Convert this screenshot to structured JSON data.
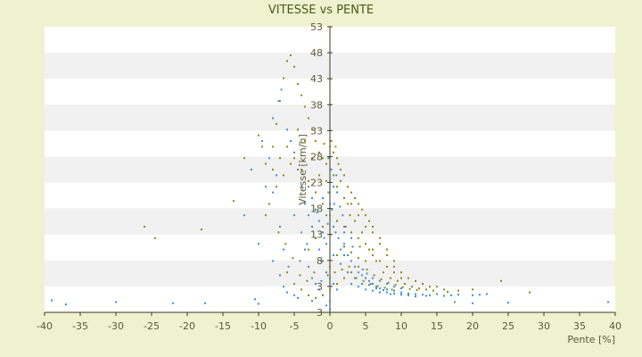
{
  "colors": {
    "background": "#eef2cf",
    "plot_band_light": "#ffffff",
    "plot_band_dark": "#f1f1f1",
    "axis": "#3a3a1a",
    "series_a": "#3a8fd9",
    "series_b": "#8a8a10"
  },
  "chart_data": {
    "type": "scatter",
    "title": "VITESSE vs PENTE",
    "xlabel": "Pente [%]",
    "ylabel": "Vitesse [km/h]",
    "xlim": [
      -40,
      40
    ],
    "ylim": [
      3,
      53
    ],
    "x_ticks": [
      -40,
      -35,
      -30,
      -25,
      -20,
      -15,
      -10,
      -5,
      0,
      5,
      10,
      15,
      20,
      25,
      30,
      35,
      40
    ],
    "y_tick_labels": [
      "3",
      "3",
      "8",
      "13",
      "18",
      "23",
      "28",
      "33",
      "38",
      "43",
      "48",
      "53"
    ],
    "grid": "horizontal bands",
    "legend": "none",
    "series": [
      {
        "color": "#3a8fd9",
        "points": [
          [
            -39,
            5.1
          ],
          [
            -37,
            4.4
          ],
          [
            -30,
            4.8
          ],
          [
            -22,
            4.6
          ],
          [
            -17.5,
            4.6
          ],
          [
            -10.5,
            5.3
          ],
          [
            -10,
            4.5
          ],
          [
            -7,
            9.5
          ],
          [
            -6.5,
            7.5
          ],
          [
            -6,
            6.5
          ],
          [
            -5,
            6.0
          ],
          [
            -4.5,
            5.5
          ],
          [
            -8,
            24
          ],
          [
            -7.5,
            27
          ],
          [
            -7,
            30
          ],
          [
            -8,
            37
          ],
          [
            -7.2,
            40
          ],
          [
            -6.8,
            42
          ],
          [
            -6,
            35
          ],
          [
            -5.5,
            33
          ],
          [
            -5,
            31
          ],
          [
            -4.5,
            28
          ],
          [
            -4,
            25
          ],
          [
            -3.5,
            22
          ],
          [
            -3,
            20
          ],
          [
            -2.5,
            18
          ],
          [
            -2,
            16
          ],
          [
            -1.5,
            14
          ],
          [
            -1,
            12
          ],
          [
            -0.5,
            10
          ],
          [
            0,
            9
          ],
          [
            0.5,
            8
          ],
          [
            1,
            7
          ],
          [
            -10,
            15
          ],
          [
            -12,
            20
          ],
          [
            -9,
            25
          ],
          [
            -8.5,
            30
          ],
          [
            -9.5,
            33
          ],
          [
            -11,
            28
          ],
          [
            -5,
            20
          ],
          [
            -4,
            17
          ],
          [
            -3.5,
            14
          ],
          [
            -3,
            11
          ],
          [
            -2.5,
            9
          ],
          [
            -2,
            8
          ],
          [
            -1.5,
            7
          ],
          [
            -1,
            6
          ],
          [
            0,
            5
          ],
          [
            -8,
            12
          ],
          [
            -7,
            18
          ],
          [
            -6.5,
            14
          ],
          [
            -5.8,
            11
          ],
          [
            -4.2,
            12
          ],
          [
            -3.2,
            15
          ],
          [
            0,
            26
          ],
          [
            0.5,
            25
          ],
          [
            1,
            24
          ],
          [
            -1,
            23
          ],
          [
            0,
            22
          ],
          [
            0.3,
            21
          ],
          [
            -0.5,
            20
          ],
          [
            1,
            19
          ],
          [
            0.5,
            18
          ],
          [
            -0.3,
            18.5
          ],
          [
            0.8,
            17
          ],
          [
            1.2,
            16
          ],
          [
            2,
            15
          ],
          [
            1.5,
            14
          ],
          [
            2.5,
            13
          ],
          [
            3,
            12
          ],
          [
            3.5,
            11
          ],
          [
            4,
            10
          ],
          [
            4.5,
            9.5
          ],
          [
            5,
            9
          ],
          [
            5.5,
            8.5
          ],
          [
            6,
            8
          ],
          [
            6.5,
            7.5
          ],
          [
            7,
            7.2
          ],
          [
            8,
            7
          ],
          [
            9,
            6.8
          ],
          [
            10,
            6.5
          ],
          [
            11,
            6.3
          ],
          [
            12,
            6.2
          ],
          [
            13,
            6.1
          ],
          [
            14,
            6.0
          ],
          [
            15,
            6.2
          ],
          [
            16,
            5.9
          ],
          [
            17,
            6.0
          ],
          [
            18,
            6.1
          ],
          [
            20,
            6.0
          ],
          [
            21,
            6.1
          ],
          [
            22,
            6.2
          ],
          [
            3,
            8
          ],
          [
            4,
            7.5
          ],
          [
            5,
            7
          ],
          [
            6,
            6.8
          ],
          [
            7,
            6.5
          ],
          [
            8,
            6.5
          ],
          [
            9,
            6.3
          ],
          [
            10,
            6.1
          ],
          [
            11,
            6.0
          ],
          [
            12,
            5.8
          ],
          [
            4.5,
            8
          ],
          [
            5.5,
            7.8
          ],
          [
            6.5,
            7.2
          ],
          [
            7.5,
            6.9
          ],
          [
            3.5,
            9
          ],
          [
            2.5,
            10
          ],
          [
            1.5,
            11.5
          ],
          [
            0.5,
            13
          ],
          [
            -0.5,
            15
          ],
          [
            -1,
            17
          ],
          [
            -1.5,
            19
          ],
          [
            -2,
            21
          ],
          [
            -2.5,
            23
          ],
          [
            -3,
            25
          ],
          [
            -0.2,
            30
          ],
          [
            0.2,
            28
          ],
          [
            0.6,
            22
          ],
          [
            1.8,
            20
          ],
          [
            2.2,
            18
          ],
          [
            6,
            9
          ],
          [
            7,
            8.5
          ],
          [
            8,
            8
          ],
          [
            9,
            7.5
          ],
          [
            10,
            7.2
          ],
          [
            2,
            17
          ],
          [
            3,
            16
          ],
          [
            -0.8,
            16
          ],
          [
            -1.8,
            20.5
          ],
          [
            -0.2,
            24
          ],
          [
            1.4,
            21.5
          ],
          [
            0.9,
            27
          ],
          [
            17.5,
            4.8
          ],
          [
            20,
            4.6
          ],
          [
            25,
            4.7
          ],
          [
            39,
            4.8
          ],
          [
            0,
            3.5
          ],
          [
            -0.5,
            4.2
          ],
          [
            -2.5,
            5.0
          ],
          [
            -1.2,
            8.5
          ],
          [
            2,
            13
          ],
          [
            3.2,
            14.5
          ],
          [
            4.6,
            10.5
          ],
          [
            5.2,
            9.8
          ],
          [
            8.5,
            6.2
          ],
          [
            13.5,
            5.9
          ]
        ]
      },
      {
        "color": "#8a8a10",
        "points": [
          [
            -26,
            18
          ],
          [
            -24.5,
            16
          ],
          [
            -18,
            17.5
          ],
          [
            -13.5,
            22.5
          ],
          [
            -12,
            30
          ],
          [
            -10,
            34
          ],
          [
            -9.5,
            32
          ],
          [
            -9,
            29
          ],
          [
            -8,
            32
          ],
          [
            -7.5,
            36
          ],
          [
            -7,
            40
          ],
          [
            -6.5,
            44
          ],
          [
            -6,
            47
          ],
          [
            -5.5,
            48
          ],
          [
            -5,
            46
          ],
          [
            -4.5,
            43
          ],
          [
            -4,
            41
          ],
          [
            -3.5,
            39
          ],
          [
            -3,
            37
          ],
          [
            -2.5,
            35
          ],
          [
            -2,
            33
          ],
          [
            -1.5,
            31
          ],
          [
            -1,
            30
          ],
          [
            -0.5,
            29
          ],
          [
            0,
            32
          ],
          [
            0.5,
            31
          ],
          [
            1,
            30
          ],
          [
            1.5,
            28
          ],
          [
            2,
            27
          ],
          [
            2.5,
            25
          ],
          [
            3,
            24
          ],
          [
            3.5,
            23
          ],
          [
            4,
            22
          ],
          [
            4.5,
            21
          ],
          [
            5,
            20
          ],
          [
            5.5,
            19
          ],
          [
            6,
            18
          ],
          [
            7,
            16
          ],
          [
            8,
            13
          ],
          [
            9,
            11
          ],
          [
            10,
            10
          ],
          [
            11,
            9
          ],
          [
            12,
            8.5
          ],
          [
            13,
            8
          ],
          [
            14,
            7.5
          ],
          [
            15,
            7.5
          ],
          [
            16,
            7
          ],
          [
            18,
            6.8
          ],
          [
            20,
            7
          ],
          [
            24,
            8.5
          ],
          [
            28,
            6.5
          ],
          [
            -8,
            28
          ],
          [
            -7,
            30
          ],
          [
            -6,
            32
          ],
          [
            -5,
            30
          ],
          [
            -4,
            28
          ],
          [
            -3,
            26
          ],
          [
            -2,
            24
          ],
          [
            -1,
            22
          ],
          [
            0,
            20
          ],
          [
            1,
            19
          ],
          [
            2,
            18
          ],
          [
            3,
            17
          ],
          [
            4,
            16
          ],
          [
            5,
            15
          ],
          [
            6,
            14
          ],
          [
            7,
            12
          ],
          [
            8,
            11
          ],
          [
            9,
            10
          ],
          [
            10,
            9
          ],
          [
            -6,
            10
          ],
          [
            -5,
            8
          ],
          [
            -4,
            7
          ],
          [
            -3,
            6
          ],
          [
            -2,
            5.5
          ],
          [
            -1,
            6
          ],
          [
            0,
            7
          ],
          [
            1,
            8
          ],
          [
            2,
            9
          ],
          [
            3,
            10
          ],
          [
            4,
            11
          ],
          [
            5,
            12
          ],
          [
            6,
            13
          ],
          [
            -3,
            14
          ],
          [
            -2,
            16
          ],
          [
            -1,
            18
          ],
          [
            0,
            24
          ],
          [
            1,
            25
          ],
          [
            2,
            23
          ],
          [
            3,
            22
          ],
          [
            4,
            20
          ],
          [
            5,
            18
          ],
          [
            6,
            17
          ],
          [
            7,
            15
          ],
          [
            8,
            14
          ],
          [
            9,
            12
          ],
          [
            -4.5,
            35
          ],
          [
            -3.5,
            33
          ],
          [
            -2.5,
            30
          ],
          [
            -1.5,
            27
          ],
          [
            -0.5,
            26
          ],
          [
            0.5,
            27
          ],
          [
            1.5,
            26
          ],
          [
            2.5,
            22
          ],
          [
            3.5,
            19
          ],
          [
            4.5,
            17
          ],
          [
            5.5,
            14
          ],
          [
            6.5,
            12
          ],
          [
            7.5,
            10
          ],
          [
            8.5,
            9
          ],
          [
            9.5,
            8.5
          ],
          [
            10.5,
            8
          ],
          [
            11.5,
            7.5
          ],
          [
            12.5,
            7.2
          ],
          [
            13.5,
            7
          ],
          [
            -9,
            20
          ],
          [
            -8.5,
            22
          ],
          [
            -7.5,
            25
          ],
          [
            -6.5,
            27
          ],
          [
            -5.5,
            29
          ],
          [
            0.2,
            33
          ],
          [
            0.8,
            32
          ],
          [
            -0.8,
            32.5
          ],
          [
            1.2,
            29
          ],
          [
            2.8,
            20
          ],
          [
            4.2,
            14.5
          ],
          [
            5.2,
            10.5
          ],
          [
            6.2,
            9.5
          ],
          [
            7.2,
            8.8
          ],
          [
            8.2,
            8.2
          ],
          [
            9.2,
            7.8
          ],
          [
            10.2,
            7.4
          ],
          [
            11.2,
            7.1
          ],
          [
            12.2,
            6.9
          ],
          [
            14.5,
            6.8
          ],
          [
            16.5,
            6.6
          ],
          [
            -1.2,
            12
          ],
          [
            -2.2,
            10
          ],
          [
            -3.2,
            8.5
          ],
          [
            -4.2,
            9.5
          ],
          [
            -5.2,
            12.5
          ],
          [
            -6.2,
            15
          ],
          [
            -7.2,
            17
          ],
          [
            0,
            11
          ],
          [
            1,
            13
          ],
          [
            2,
            14.5
          ],
          [
            3,
            13.5
          ],
          [
            4,
            12.5
          ],
          [
            -0.3,
            9.5
          ],
          [
            0.7,
            10
          ],
          [
            1.7,
            10.5
          ],
          [
            2.7,
            11
          ],
          [
            3.7,
            9
          ],
          [
            4.7,
            8.5
          ],
          [
            5.7,
            8
          ],
          [
            6.7,
            7.6
          ],
          [
            7.7,
            7.3
          ],
          [
            8.7,
            7
          ]
        ]
      }
    ]
  }
}
